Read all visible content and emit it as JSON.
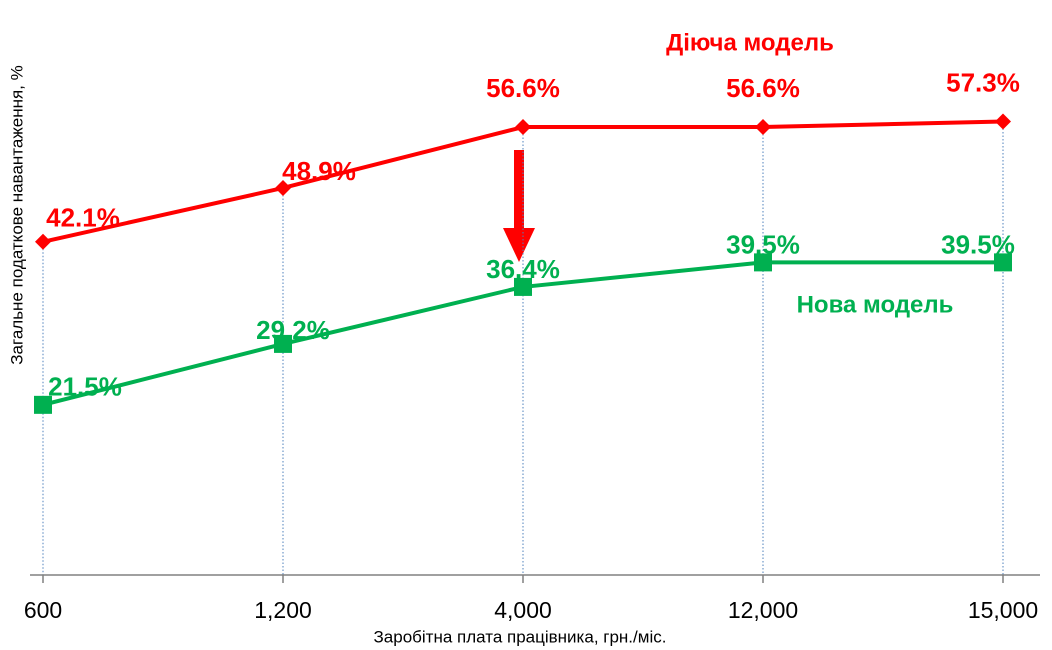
{
  "chart_data": {
    "type": "line",
    "x_label": "Заробітна плата працівника, грн./міс.",
    "y_label": "Загальне податкове навантаження, %",
    "categories": [
      "600",
      "1,200",
      "4,000",
      "12,000",
      "15,000"
    ],
    "ylim": [
      0,
      70
    ],
    "series": [
      {
        "name": "Діюча модель",
        "color": "#ff0000",
        "marker": "diamond",
        "values": [
          42.1,
          48.9,
          56.6,
          56.6,
          57.3
        ],
        "value_labels": [
          "42.1%",
          "48.9%",
          "56.6%",
          "56.6%",
          "57.3%"
        ]
      },
      {
        "name": "Нова модель",
        "color": "#00b050",
        "marker": "square",
        "values": [
          21.5,
          29.2,
          36.4,
          39.5,
          39.5
        ],
        "value_labels": [
          "21.5%",
          "29.2%",
          "36.4%",
          "39.5%",
          "39.5%"
        ]
      }
    ]
  }
}
